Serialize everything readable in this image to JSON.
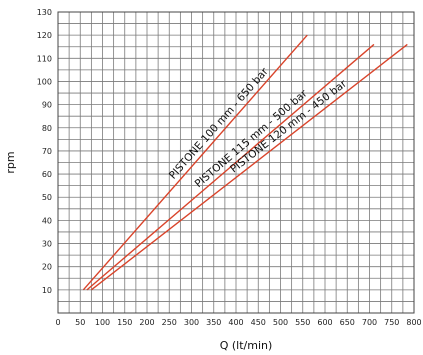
{
  "chart_data": {
    "type": "line",
    "title": "",
    "xlabel": "Q (lt/min)",
    "ylabel": "rpm",
    "xlim": [
      0,
      800
    ],
    "ylim": [
      0,
      130
    ],
    "x_ticks": [
      0,
      50,
      100,
      150,
      200,
      250,
      300,
      350,
      400,
      450,
      500,
      550,
      600,
      650,
      700,
      750,
      800
    ],
    "y_ticks": [
      10,
      20,
      30,
      40,
      50,
      60,
      70,
      80,
      90,
      100,
      110,
      120,
      130
    ],
    "grid": true,
    "grid_x_step": 25,
    "grid_y_step": 5,
    "line_color": "#d9442b",
    "series": [
      {
        "name": "PISTONE 100 mm - 650 bar",
        "points": [
          [
            57,
            10
          ],
          [
            560,
            120
          ]
        ]
      },
      {
        "name": "PISTONE 115 mm - 500 bar",
        "points": [
          [
            65,
            10
          ],
          [
            710,
            116
          ]
        ]
      },
      {
        "name": "PISTONE 120 mm - 450 bar",
        "points": [
          [
            75,
            10
          ],
          [
            785,
            116
          ]
        ]
      }
    ]
  }
}
